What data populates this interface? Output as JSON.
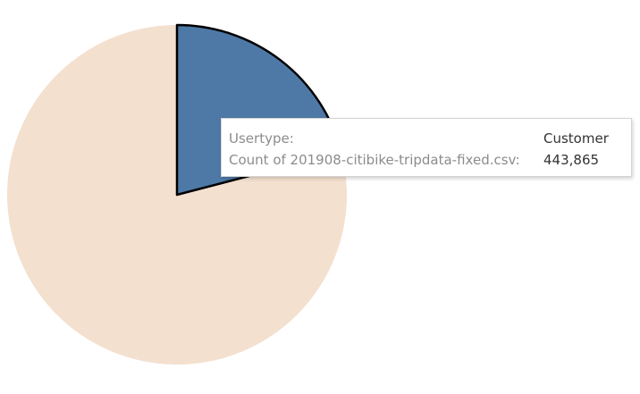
{
  "chart_data": {
    "type": "pie",
    "slices": [
      {
        "label": "Customer",
        "value": 443865,
        "color": "#4e79a7",
        "highlighted": true
      },
      {
        "label": "",
        "value": 1675135,
        "color": "#f4e0cf",
        "highlighted": false
      }
    ],
    "start_angle_deg": 0,
    "direction": "clockwise"
  },
  "tooltip": {
    "rows": [
      {
        "label": "Usertype:",
        "value": "Customer"
      },
      {
        "label": "Count of 201908-citibike-tripdata-fixed.csv:",
        "value": "443,865"
      }
    ]
  },
  "colors": {
    "highlight_stroke": "#000000"
  }
}
